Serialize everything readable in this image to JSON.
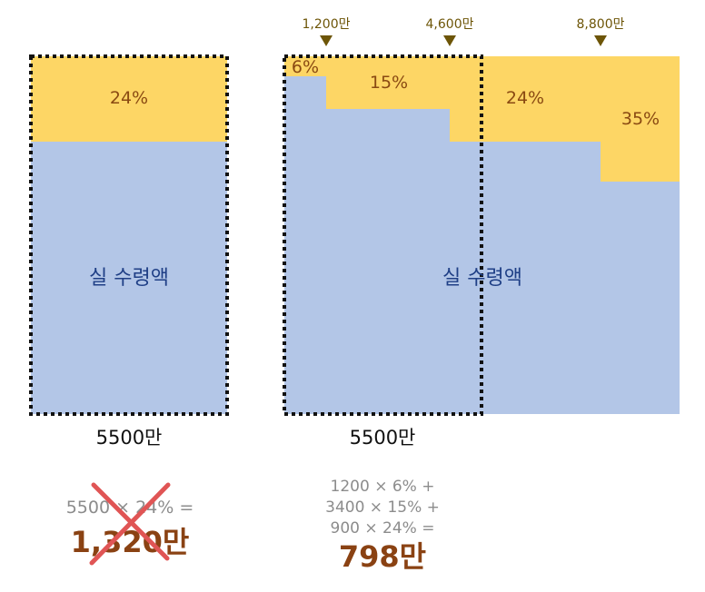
{
  "colors": {
    "tax": "#fdd665",
    "net": "#b3c6e7",
    "pct_text": "#8a4a12",
    "net_text": "#1f3f86",
    "marker": "#6d5507",
    "result": "#8a4213",
    "formula": "#8c8c8c",
    "cross": "#e05555"
  },
  "left": {
    "tax_rate": "24%",
    "net_label": "실 수령액",
    "base_label": "5500만",
    "formula": "5500 × 24% =",
    "result": "1,320만",
    "result_status": "crossed-out"
  },
  "right": {
    "markers": [
      "1,200만",
      "4,600만",
      "8,800만"
    ],
    "rates": [
      "6%",
      "15%",
      "24%",
      "35%"
    ],
    "net_label": "실 수령액",
    "base_label": "5500만",
    "formula_lines": [
      "1200 × 6% +",
      "3400 × 15% +",
      "900 × 24% ="
    ],
    "result": "798만"
  }
}
